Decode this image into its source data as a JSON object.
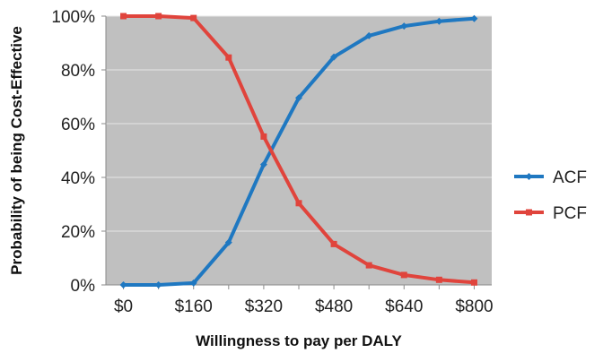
{
  "chart_data": {
    "type": "line",
    "title": "",
    "xlabel": "Willingness to pay per DALY",
    "ylabel": "Probability of being Cost-Effective",
    "x": [
      0,
      80,
      160,
      240,
      320,
      400,
      480,
      560,
      640,
      720,
      800
    ],
    "xlim": [
      -40,
      840
    ],
    "ylim": [
      0,
      100
    ],
    "x_ticks": [
      0,
      160,
      320,
      480,
      640,
      800
    ],
    "x_tick_labels": [
      "$0",
      "$160",
      "$320",
      "$480",
      "$640",
      "$800"
    ],
    "y_ticks": [
      0,
      20,
      40,
      60,
      80,
      100
    ],
    "y_tick_labels": [
      "0%",
      "20%",
      "40%",
      "60%",
      "80%",
      "100%"
    ],
    "grid": true,
    "plot_background": "#c0c0c0",
    "legend_position": "right",
    "series": [
      {
        "name": "ACF",
        "color": "#1f78c1",
        "marker": "diamond",
        "values": [
          0,
          0,
          0.7,
          15.8,
          44.8,
          69.6,
          84.8,
          92.7,
          96.3,
          98.1,
          99.1
        ]
      },
      {
        "name": "PCF",
        "color": "#e0443c",
        "marker": "square",
        "values": [
          100,
          100,
          99.3,
          84.6,
          55.2,
          30.4,
          15.2,
          7.3,
          3.7,
          1.9,
          0.9
        ]
      }
    ]
  }
}
